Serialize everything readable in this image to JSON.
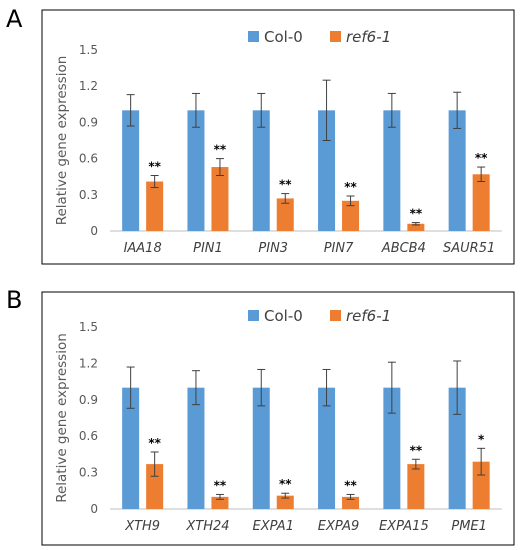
{
  "chart_data": [
    {
      "panel": "A",
      "type": "bar",
      "ylabel": "Relative gene expression",
      "ylim": [
        0,
        1.5
      ],
      "yticks": [
        "0",
        "0.3",
        "0.6",
        "0.9",
        "1.2",
        "1.5"
      ],
      "categories": [
        "IAA18",
        "PIN1",
        "PIN3",
        "PIN7",
        "ABCB4",
        "SAUR51"
      ],
      "legend_position": "top",
      "series": [
        {
          "name": "Col-0",
          "color": "#5b9bd5",
          "values": [
            1.0,
            1.0,
            1.0,
            1.0,
            1.0,
            1.0
          ],
          "errors": [
            0.13,
            0.14,
            0.14,
            0.25,
            0.14,
            0.15
          ],
          "significance": [
            "",
            "",
            "",
            "",
            "",
            ""
          ]
        },
        {
          "name": "ref6-1",
          "name_italic": true,
          "color": "#ed7d31",
          "values": [
            0.41,
            0.53,
            0.27,
            0.25,
            0.06,
            0.47
          ],
          "errors": [
            0.05,
            0.07,
            0.04,
            0.04,
            0.01,
            0.06
          ],
          "significance": [
            "**",
            "**",
            "**",
            "**",
            "**",
            "**"
          ]
        }
      ]
    },
    {
      "panel": "B",
      "type": "bar",
      "ylabel": "Relative gene expression",
      "ylim": [
        0,
        1.5
      ],
      "yticks": [
        "0",
        "0.3",
        "0.6",
        "0.9",
        "1.2",
        "1.5"
      ],
      "categories": [
        "XTH9",
        "XTH24",
        "EXPA1",
        "EXPA9",
        "EXPA15",
        "PME1"
      ],
      "legend_position": "top",
      "series": [
        {
          "name": "Col-0",
          "color": "#5b9bd5",
          "values": [
            1.0,
            1.0,
            1.0,
            1.0,
            1.0,
            1.0
          ],
          "errors": [
            0.17,
            0.14,
            0.15,
            0.15,
            0.21,
            0.22
          ],
          "significance": [
            "",
            "",
            "",
            "",
            "",
            ""
          ]
        },
        {
          "name": "ref6-1",
          "name_italic": true,
          "color": "#ed7d31",
          "values": [
            0.37,
            0.1,
            0.11,
            0.1,
            0.37,
            0.39
          ],
          "errors": [
            0.1,
            0.02,
            0.02,
            0.02,
            0.04,
            0.11
          ],
          "significance": [
            "**",
            "**",
            "**",
            "**",
            "**",
            "*"
          ]
        }
      ]
    }
  ]
}
